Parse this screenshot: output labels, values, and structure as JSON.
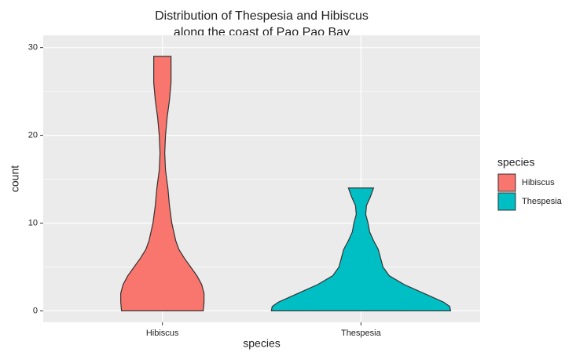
{
  "chart_data": {
    "type": "violin",
    "title": "Distribution of Thespesia and Hibiscus",
    "subtitle": "along the coast of Pao Pao Bay",
    "x_label": "species",
    "y_label": "count",
    "categories": [
      "Hibiscus",
      "Thespesia"
    ],
    "legend_title": "species",
    "legend": "right",
    "ylim": [
      -1.3,
      31.4
    ],
    "yticks": [
      0,
      10,
      20,
      30
    ],
    "minor_yticks": [
      5,
      15,
      25
    ],
    "grid": true,
    "series": [
      {
        "name": "Hibiscus",
        "color": "#f8766d",
        "y": [
          0,
          1,
          2,
          3,
          4,
          5,
          6,
          7,
          8,
          10,
          12,
          14,
          16,
          18,
          20,
          22,
          24,
          26,
          28,
          29
        ],
        "density": [
          52,
          53,
          53,
          50,
          44,
          36,
          28,
          21,
          17,
          12,
          9,
          7,
          4,
          3,
          4,
          6,
          9,
          11,
          11,
          11
        ]
      },
      {
        "name": "Thespesia",
        "color": "#00bfc4",
        "y": [
          0,
          0.5,
          1,
          2,
          3,
          4,
          5,
          6,
          7,
          8,
          9,
          10,
          11,
          12,
          13,
          14
        ],
        "density": [
          114,
          113,
          105,
          80,
          55,
          36,
          28,
          25,
          22,
          16,
          11,
          9,
          6,
          7,
          12,
          16
        ]
      }
    ]
  }
}
